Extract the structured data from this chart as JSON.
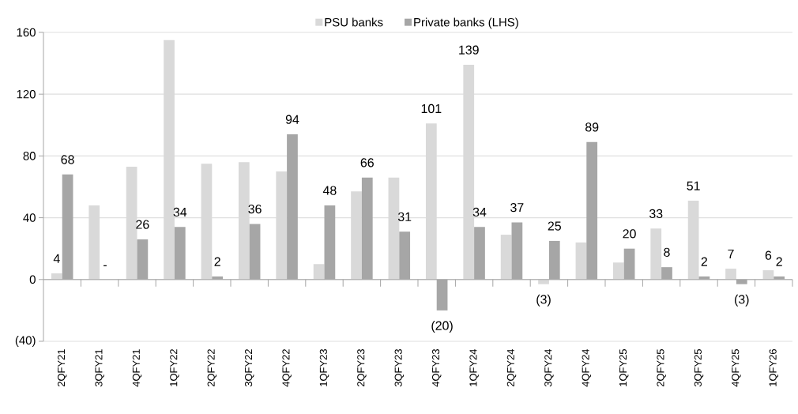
{
  "chart_data": {
    "type": "bar",
    "categories": [
      "2QFY21",
      "3QFY21",
      "4QFY21",
      "1QFY22",
      "2QFY22",
      "3QFY22",
      "4QFY22",
      "1QFY23",
      "2QFY23",
      "3QFY23",
      "4QFY23",
      "1QFY24",
      "2QFY24",
      "3QFY24",
      "4QFY24",
      "1QFY25",
      "2QFY25",
      "3QFY25",
      "4QFY25",
      "1QFY26"
    ],
    "series": [
      {
        "name": "PSU banks",
        "color": "#d9d9d9",
        "values": [
          4,
          48,
          73,
          155,
          75,
          76,
          70,
          10,
          57,
          66,
          101,
          139,
          29,
          -3,
          24,
          11,
          33,
          51,
          7,
          6
        ],
        "value_labels": [
          "4",
          null,
          null,
          null,
          null,
          null,
          null,
          null,
          null,
          null,
          "101",
          "139",
          null,
          "(3)",
          null,
          null,
          "33",
          "51",
          "7",
          "6"
        ]
      },
      {
        "name": "Private banks (LHS)",
        "color": "#a6a6a6",
        "values": [
          68,
          0,
          26,
          34,
          2,
          36,
          94,
          48,
          66,
          31,
          -20,
          34,
          37,
          25,
          89,
          20,
          8,
          2,
          -3,
          2
        ],
        "value_labels": [
          "68",
          "-",
          "26",
          "34",
          "2",
          "36",
          "94",
          "48",
          "66",
          "31",
          "(20)",
          "34",
          "37",
          "25",
          "89",
          "20",
          "8",
          "2",
          "(3)",
          "2"
        ]
      }
    ],
    "ylim": [
      -40,
      160
    ],
    "yticks": [
      {
        "value": -40,
        "label": "(40)"
      },
      0,
      40,
      80,
      120,
      160
    ],
    "grid": "y",
    "legend": "top"
  }
}
